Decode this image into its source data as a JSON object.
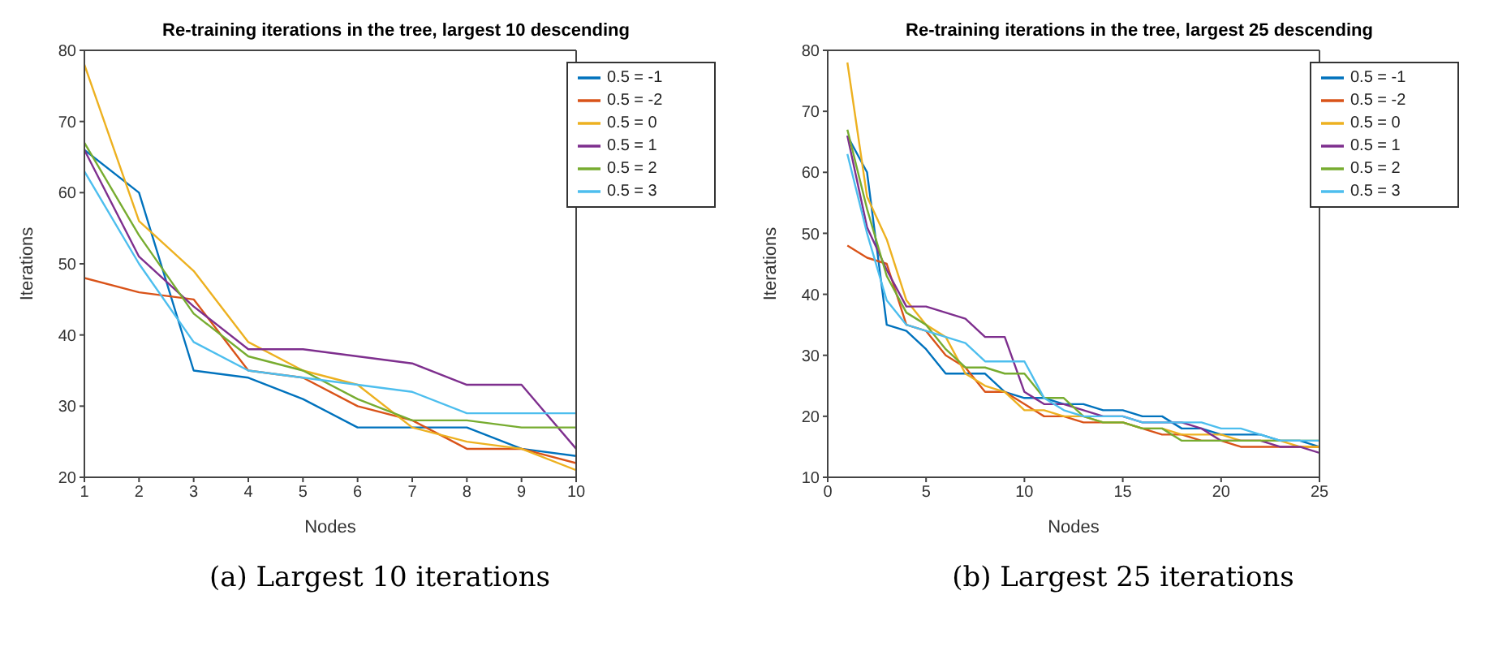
{
  "chart_data": [
    {
      "type": "line",
      "title": "Re-training iterations in the tree, largest 10 descending",
      "xlabel": "Nodes",
      "ylabel": "Iterations",
      "annotations": [
        "(a) Largest 10 iterations"
      ],
      "x": [
        1,
        2,
        3,
        4,
        5,
        6,
        7,
        8,
        9,
        10
      ],
      "xlim": [
        1,
        10
      ],
      "xticks": [
        1,
        2,
        3,
        4,
        5,
        6,
        7,
        8,
        9,
        10
      ],
      "ylim": [
        20,
        80
      ],
      "yticks": [
        20,
        30,
        40,
        50,
        60,
        70,
        80
      ],
      "legend": "top right",
      "grid": false,
      "series": [
        {
          "name": "0.5 = -1",
          "color": "#0072bd",
          "values": [
            66,
            60,
            35,
            34,
            31,
            27,
            27,
            27,
            24,
            23
          ]
        },
        {
          "name": "0.5 = -2",
          "color": "#d95319",
          "values": [
            48,
            46,
            45,
            35,
            34,
            30,
            28,
            24,
            24,
            22
          ]
        },
        {
          "name": "0.5 = 0",
          "color": "#edb120",
          "values": [
            78,
            56,
            49,
            39,
            35,
            33,
            27,
            25,
            24,
            21
          ]
        },
        {
          "name": "0.5 = 1",
          "color": "#7e2f8e",
          "values": [
            66,
            51,
            44,
            38,
            38,
            37,
            36,
            33,
            33,
            24
          ]
        },
        {
          "name": "0.5 = 2",
          "color": "#77ac30",
          "values": [
            67,
            54,
            43,
            37,
            35,
            31,
            28,
            28,
            27,
            27
          ]
        },
        {
          "name": "0.5 = 3",
          "color": "#4dbeee",
          "values": [
            63,
            50,
            39,
            35,
            34,
            33,
            32,
            29,
            29,
            29
          ]
        }
      ]
    },
    {
      "type": "line",
      "title": "Re-training iterations in the tree, largest 25 descending",
      "xlabel": "Nodes",
      "ylabel": "Iterations",
      "annotations": [
        "(b) Largest 25 iterations"
      ],
      "x": [
        1,
        2,
        3,
        4,
        5,
        6,
        7,
        8,
        9,
        10,
        11,
        12,
        13,
        14,
        15,
        16,
        17,
        18,
        19,
        20,
        21,
        22,
        23,
        24,
        25
      ],
      "xlim": [
        0,
        25
      ],
      "xticks": [
        0,
        5,
        10,
        15,
        20,
        25
      ],
      "ylim": [
        10,
        80
      ],
      "yticks": [
        10,
        20,
        30,
        40,
        50,
        60,
        70,
        80
      ],
      "legend": "top right",
      "grid": false,
      "series": [
        {
          "name": "0.5 = -1",
          "color": "#0072bd",
          "values": [
            66,
            60,
            35,
            34,
            31,
            27,
            27,
            27,
            24,
            23,
            23,
            22,
            22,
            21,
            21,
            20,
            20,
            18,
            18,
            17,
            17,
            17,
            16,
            16,
            15
          ]
        },
        {
          "name": "0.5 = -2",
          "color": "#d95319",
          "values": [
            48,
            46,
            45,
            35,
            34,
            30,
            28,
            24,
            24,
            22,
            20,
            20,
            19,
            19,
            19,
            18,
            17,
            17,
            16,
            16,
            15,
            15,
            15,
            15,
            15
          ]
        },
        {
          "name": "0.5 = 0",
          "color": "#edb120",
          "values": [
            78,
            56,
            49,
            39,
            35,
            33,
            27,
            25,
            24,
            21,
            21,
            20,
            20,
            19,
            19,
            18,
            18,
            17,
            17,
            17,
            16,
            16,
            16,
            15,
            15
          ]
        },
        {
          "name": "0.5 = 1",
          "color": "#7e2f8e",
          "values": [
            66,
            51,
            44,
            38,
            38,
            37,
            36,
            33,
            33,
            24,
            22,
            22,
            21,
            20,
            20,
            19,
            19,
            19,
            18,
            16,
            16,
            16,
            15,
            15,
            14
          ]
        },
        {
          "name": "0.5 = 2",
          "color": "#77ac30",
          "values": [
            67,
            54,
            43,
            37,
            35,
            31,
            28,
            28,
            27,
            27,
            23,
            23,
            20,
            19,
            19,
            18,
            18,
            16,
            16,
            16,
            16,
            16,
            16,
            16,
            16
          ]
        },
        {
          "name": "0.5 = 3",
          "color": "#4dbeee",
          "values": [
            63,
            50,
            39,
            35,
            34,
            33,
            32,
            29,
            29,
            29,
            23,
            21,
            20,
            20,
            20,
            19,
            19,
            19,
            19,
            18,
            18,
            17,
            16,
            16,
            16
          ]
        }
      ]
    }
  ]
}
